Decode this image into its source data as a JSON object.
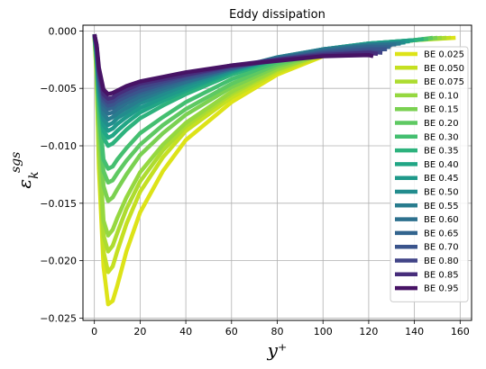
{
  "chart_data": {
    "type": "line",
    "title": "Eddy dissipation",
    "xlabel": "y⁺",
    "ylabel_main": "ε",
    "ylabel_sub": "k",
    "ylabel_sup": "sgs",
    "xlim": [
      -5,
      165
    ],
    "ylim": [
      -0.0252,
      0.0005
    ],
    "xticks": [
      0,
      20,
      40,
      60,
      80,
      100,
      120,
      140,
      160
    ],
    "xtick_labels": [
      "0",
      "20",
      "40",
      "60",
      "80",
      "100",
      "120",
      "140",
      "160"
    ],
    "yticks": [
      0.0,
      -0.005,
      -0.01,
      -0.015,
      -0.02,
      -0.025
    ],
    "ytick_labels": [
      "0.000",
      "−0.005",
      "−0.010",
      "−0.015",
      "−0.020",
      "−0.025"
    ],
    "grid": true,
    "legend_position": "right",
    "series": [
      {
        "name": "BE 0.025",
        "color": "#dde318",
        "x": [
          0,
          1,
          2,
          4,
          6,
          8,
          10,
          14,
          20,
          30,
          40,
          60,
          80,
          100,
          120,
          140,
          158
        ],
        "y": [
          -0.0003,
          -0.004,
          -0.012,
          -0.0205,
          -0.0238,
          -0.0235,
          -0.0222,
          -0.0192,
          -0.0158,
          -0.0122,
          -0.0095,
          -0.0062,
          -0.0038,
          -0.0022,
          -0.0013,
          -0.0008,
          -0.0006
        ]
      },
      {
        "name": "BE 0.050",
        "color": "#c5e021",
        "x": [
          0,
          1,
          2,
          4,
          6,
          8,
          10,
          14,
          20,
          30,
          40,
          60,
          80,
          100,
          120,
          140,
          156
        ],
        "y": [
          -0.0003,
          -0.004,
          -0.011,
          -0.0192,
          -0.021,
          -0.0205,
          -0.0192,
          -0.0168,
          -0.014,
          -0.011,
          -0.0087,
          -0.0058,
          -0.0036,
          -0.0021,
          -0.0012,
          -0.0008,
          -0.0006
        ]
      },
      {
        "name": "BE 0.075",
        "color": "#addc30",
        "x": [
          0,
          1,
          2,
          4,
          6,
          8,
          10,
          14,
          20,
          30,
          40,
          60,
          80,
          100,
          120,
          140,
          154
        ],
        "y": [
          -0.0003,
          -0.0035,
          -0.0102,
          -0.0178,
          -0.0192,
          -0.0187,
          -0.0176,
          -0.0155,
          -0.0131,
          -0.0104,
          -0.0083,
          -0.0055,
          -0.0034,
          -0.002,
          -0.0012,
          -0.0008,
          -0.0006
        ]
      },
      {
        "name": "BE 0.10",
        "color": "#95d840",
        "x": [
          0,
          1,
          2,
          4,
          6,
          8,
          10,
          14,
          20,
          30,
          40,
          60,
          80,
          100,
          120,
          140,
          152
        ],
        "y": [
          -0.0003,
          -0.0032,
          -0.0095,
          -0.0165,
          -0.0178,
          -0.0173,
          -0.0163,
          -0.0145,
          -0.0123,
          -0.0099,
          -0.008,
          -0.0053,
          -0.0033,
          -0.002,
          -0.0012,
          -0.0008,
          -0.0006
        ]
      },
      {
        "name": "BE 0.15",
        "color": "#7ad151",
        "x": [
          0,
          1,
          2,
          4,
          6,
          8,
          10,
          14,
          20,
          30,
          40,
          60,
          80,
          100,
          120,
          140,
          150
        ],
        "y": [
          -0.0003,
          -0.003,
          -0.0082,
          -0.0135,
          -0.0148,
          -0.0145,
          -0.0138,
          -0.0125,
          -0.0108,
          -0.0089,
          -0.0073,
          -0.0049,
          -0.0031,
          -0.0019,
          -0.0012,
          -0.0008,
          -0.0006
        ]
      },
      {
        "name": "BE 0.20",
        "color": "#5ec962",
        "x": [
          0,
          1,
          2,
          4,
          6,
          8,
          10,
          14,
          20,
          30,
          40,
          60,
          80,
          100,
          120,
          140,
          148
        ],
        "y": [
          -0.0003,
          -0.0028,
          -0.0075,
          -0.0122,
          -0.0132,
          -0.013,
          -0.0124,
          -0.0113,
          -0.0099,
          -0.0082,
          -0.0068,
          -0.0046,
          -0.0029,
          -0.0018,
          -0.0011,
          -0.0008,
          -0.0006
        ]
      },
      {
        "name": "BE 0.30",
        "color": "#44bf70",
        "x": [
          0,
          1,
          2,
          4,
          6,
          8,
          10,
          14,
          20,
          30,
          40,
          60,
          80,
          100,
          120,
          140,
          146
        ],
        "y": [
          -0.0003,
          -0.0025,
          -0.0068,
          -0.0112,
          -0.012,
          -0.0118,
          -0.0112,
          -0.0102,
          -0.0089,
          -0.0075,
          -0.0062,
          -0.0042,
          -0.0027,
          -0.0017,
          -0.0011,
          -0.0008,
          -0.0007
        ]
      },
      {
        "name": "BE 0.35",
        "color": "#2db27d",
        "x": [
          0,
          1,
          2,
          4,
          6,
          8,
          10,
          14,
          20,
          30,
          40,
          60,
          80,
          100,
          120,
          140,
          144
        ],
        "y": [
          -0.0003,
          -0.0022,
          -0.0058,
          -0.0093,
          -0.01,
          -0.0098,
          -0.0094,
          -0.0086,
          -0.0076,
          -0.0065,
          -0.0055,
          -0.0038,
          -0.0025,
          -0.0016,
          -0.0011,
          -0.0008,
          -0.0007
        ]
      },
      {
        "name": "BE 0.40",
        "color": "#21a685",
        "x": [
          0,
          1,
          2,
          4,
          6,
          8,
          10,
          14,
          20,
          30,
          40,
          60,
          80,
          100,
          120,
          140
        ],
        "y": [
          -0.0003,
          -0.0021,
          -0.0055,
          -0.0087,
          -0.0093,
          -0.0091,
          -0.0087,
          -0.008,
          -0.0071,
          -0.0061,
          -0.0052,
          -0.0036,
          -0.0024,
          -0.0016,
          -0.0011,
          -0.0008
        ]
      },
      {
        "name": "BE 0.45",
        "color": "#1f998a",
        "x": [
          0,
          1,
          2,
          4,
          6,
          8,
          10,
          14,
          20,
          30,
          40,
          60,
          80,
          100,
          120,
          138
        ],
        "y": [
          -0.0003,
          -0.002,
          -0.0052,
          -0.0082,
          -0.0087,
          -0.0085,
          -0.0081,
          -0.0075,
          -0.0067,
          -0.0058,
          -0.005,
          -0.0035,
          -0.0024,
          -0.0016,
          -0.0011,
          -0.0009
        ]
      },
      {
        "name": "BE 0.50",
        "color": "#228c8d",
        "x": [
          0,
          1,
          2,
          4,
          6,
          8,
          10,
          14,
          20,
          30,
          40,
          60,
          80,
          100,
          120,
          136
        ],
        "y": [
          -0.0003,
          -0.0019,
          -0.0049,
          -0.0077,
          -0.0082,
          -0.008,
          -0.0076,
          -0.0071,
          -0.0063,
          -0.0055,
          -0.0047,
          -0.0034,
          -0.0023,
          -0.0016,
          -0.0012,
          -0.001
        ]
      },
      {
        "name": "BE 0.55",
        "color": "#287c8e",
        "x": [
          0,
          1,
          2,
          4,
          6,
          8,
          10,
          14,
          20,
          30,
          40,
          60,
          80,
          100,
          120,
          134
        ],
        "y": [
          -0.0003,
          -0.0018,
          -0.0046,
          -0.0072,
          -0.0077,
          -0.0075,
          -0.0072,
          -0.0067,
          -0.006,
          -0.0052,
          -0.0045,
          -0.0033,
          -0.0023,
          -0.0016,
          -0.0012,
          -0.0011
        ]
      },
      {
        "name": "BE 0.60",
        "color": "#2d708e",
        "x": [
          0,
          1,
          2,
          4,
          6,
          8,
          10,
          14,
          20,
          30,
          40,
          60,
          80,
          100,
          120,
          132
        ],
        "y": [
          -0.0003,
          -0.0017,
          -0.0043,
          -0.0068,
          -0.0072,
          -0.0071,
          -0.0068,
          -0.0063,
          -0.0057,
          -0.005,
          -0.0044,
          -0.0033,
          -0.0024,
          -0.0017,
          -0.0013,
          -0.0012
        ]
      },
      {
        "name": "BE 0.65",
        "color": "#32648e",
        "x": [
          0,
          1,
          2,
          4,
          6,
          8,
          10,
          14,
          20,
          30,
          40,
          60,
          80,
          100,
          120,
          130
        ],
        "y": [
          -0.0003,
          -0.0016,
          -0.0041,
          -0.0064,
          -0.0068,
          -0.0067,
          -0.0064,
          -0.006,
          -0.0054,
          -0.0048,
          -0.0042,
          -0.0032,
          -0.0024,
          -0.0018,
          -0.0014,
          -0.0014
        ]
      },
      {
        "name": "BE 0.70",
        "color": "#3a548c",
        "x": [
          0,
          1,
          2,
          4,
          6,
          8,
          10,
          14,
          20,
          30,
          40,
          60,
          80,
          100,
          120,
          128
        ],
        "y": [
          -0.0003,
          -0.0015,
          -0.0039,
          -0.0061,
          -0.0065,
          -0.0064,
          -0.0061,
          -0.0057,
          -0.0052,
          -0.0046,
          -0.0041,
          -0.0032,
          -0.0025,
          -0.0019,
          -0.0016,
          -0.0016
        ]
      },
      {
        "name": "BE 0.80",
        "color": "#414487",
        "x": [
          0,
          1,
          2,
          4,
          6,
          8,
          10,
          14,
          20,
          30,
          40,
          60,
          80,
          100,
          120,
          126
        ],
        "y": [
          -0.0003,
          -0.0014,
          -0.0037,
          -0.0058,
          -0.0062,
          -0.0061,
          -0.0058,
          -0.0054,
          -0.0049,
          -0.0044,
          -0.0039,
          -0.0031,
          -0.0025,
          -0.002,
          -0.0018,
          -0.0019
        ]
      },
      {
        "name": "BE 0.85",
        "color": "#472d7b",
        "x": [
          0,
          1,
          2,
          4,
          6,
          8,
          10,
          14,
          20,
          30,
          40,
          60,
          80,
          100,
          120,
          124
        ],
        "y": [
          -0.0003,
          -0.0013,
          -0.0035,
          -0.0055,
          -0.0059,
          -0.0058,
          -0.0055,
          -0.0051,
          -0.0046,
          -0.0042,
          -0.0038,
          -0.003,
          -0.0025,
          -0.0021,
          -0.0019,
          -0.002
        ]
      },
      {
        "name": "BE 0.95",
        "color": "#471365",
        "x": [
          0,
          1,
          2,
          4,
          6,
          8,
          10,
          14,
          20,
          30,
          40,
          60,
          80,
          100,
          120,
          122
        ],
        "y": [
          -0.0003,
          -0.0012,
          -0.0032,
          -0.0051,
          -0.0055,
          -0.0054,
          -0.0052,
          -0.0048,
          -0.0044,
          -0.004,
          -0.0036,
          -0.003,
          -0.0026,
          -0.0022,
          -0.0021,
          -0.0022
        ]
      }
    ]
  }
}
